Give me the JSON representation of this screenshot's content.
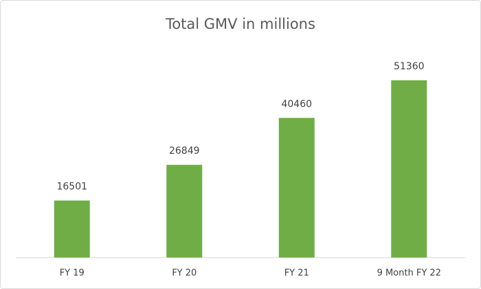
{
  "chart_data": {
    "type": "bar",
    "title": "Total GMV in millions",
    "categories": [
      "FY 19",
      "FY 20",
      "FY 21",
      "9 Month FY 22"
    ],
    "values": [
      16501,
      26849,
      40460,
      51360
    ],
    "color": "#70ad47",
    "grid": false
  }
}
